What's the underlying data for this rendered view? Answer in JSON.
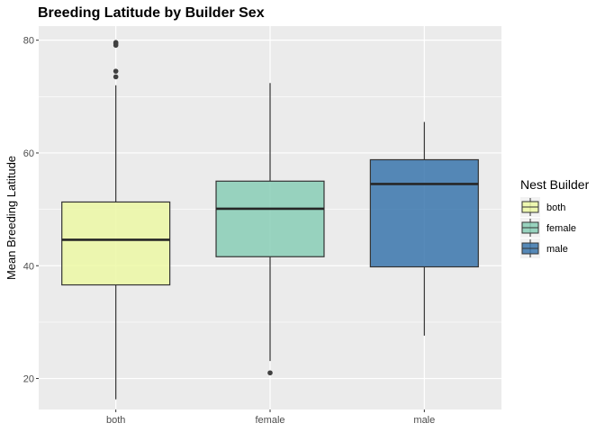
{
  "chart_data": {
    "type": "boxplot",
    "title": "Breeding Latitude by Builder Sex",
    "xlabel": "",
    "ylabel": "Mean Breeding Latitude",
    "ylim": [
      14.5,
      82.5
    ],
    "yticks": [
      20,
      40,
      60,
      80
    ],
    "categories": [
      "both",
      "female",
      "male"
    ],
    "boxes": [
      {
        "category": "both",
        "min": 16.3,
        "q1": 36.6,
        "median": 44.6,
        "q3": 51.3,
        "max": 72.0,
        "outliers": [
          73.5,
          74.5,
          79.1,
          79.4,
          79.6
        ]
      },
      {
        "category": "female",
        "min": 23.1,
        "q1": 41.6,
        "median": 50.1,
        "q3": 55.0,
        "max": 72.4,
        "outliers": [
          21.0
        ]
      },
      {
        "category": "male",
        "min": 27.6,
        "q1": 39.8,
        "median": 54.5,
        "q3": 58.8,
        "max": 65.5,
        "outliers": []
      }
    ],
    "legend": {
      "title": "Nest Builder",
      "placement": "right",
      "entries": [
        {
          "label": "both",
          "color": "#ecf8a4"
        },
        {
          "label": "female",
          "color": "#88ceb6"
        },
        {
          "label": "male",
          "color": "#3a75ad"
        }
      ]
    },
    "grid": true,
    "panel_background": "#ebebeb"
  }
}
